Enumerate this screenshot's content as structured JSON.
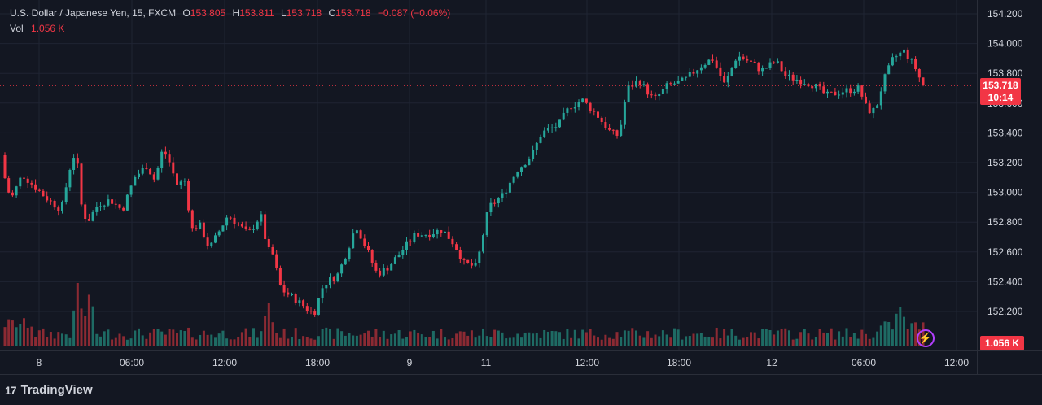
{
  "legend": {
    "symbol": "U.S. Dollar / Japanese Yen, 15, FXCM",
    "o_label": "O",
    "o_value": "153.805",
    "h_label": "H",
    "h_value": "153.811",
    "l_label": "L",
    "l_value": "153.718",
    "c_label": "C",
    "c_value": "153.718",
    "change": "−0.087 (−0.06%)",
    "vol_label": "Vol",
    "vol_value": "1.056 K"
  },
  "price_tag": {
    "price": "153.718",
    "countdown": "10:14"
  },
  "volume_tag": "1.056 K",
  "branding": {
    "name": "TradingView",
    "mark": "17"
  },
  "colors": {
    "up": "#26a69a",
    "down": "#f23645",
    "up_vol": "#1e6b64",
    "down_vol": "#8c2a33",
    "background": "#131722",
    "grid": "#1f2433",
    "text": "#d1d4dc",
    "accent_bolt": "#b33fff"
  },
  "icons": {
    "alert": "lightning-bolt-icon"
  },
  "chart_data": {
    "type": "candlestick",
    "title": "U.S. Dollar / Japanese Yen, 15, FXCM",
    "ylim": [
      152.05,
      154.25
    ],
    "y_ticks": [
      "154.200",
      "154.000",
      "153.800",
      "153.600",
      "153.400",
      "153.200",
      "153.000",
      "152.800",
      "152.600",
      "152.400",
      "152.200"
    ],
    "x_ticks": [
      "8",
      "06:00",
      "12:00",
      "18:00",
      "9",
      "11",
      "12:00",
      "18:00",
      "12",
      "06:00",
      "12:00"
    ],
    "current_price": 153.718,
    "grid": true,
    "path": [
      [
        0,
        153.35
      ],
      [
        8,
        153.15
      ],
      [
        18,
        152.95
      ],
      [
        32,
        153.12
      ],
      [
        45,
        153.05
      ],
      [
        60,
        152.97
      ],
      [
        80,
        152.88
      ],
      [
        92,
        153.2
      ],
      [
        98,
        153.28
      ],
      [
        105,
        152.9
      ],
      [
        112,
        152.8
      ],
      [
        125,
        152.92
      ],
      [
        140,
        152.95
      ],
      [
        155,
        152.88
      ],
      [
        170,
        153.1
      ],
      [
        185,
        153.18
      ],
      [
        195,
        153.08
      ],
      [
        205,
        153.3
      ],
      [
        213,
        153.2
      ],
      [
        222,
        153.05
      ],
      [
        232,
        153.08
      ],
      [
        240,
        152.75
      ],
      [
        250,
        152.78
      ],
      [
        262,
        152.62
      ],
      [
        275,
        152.75
      ],
      [
        285,
        152.85
      ],
      [
        298,
        152.78
      ],
      [
        310,
        152.72
      ],
      [
        325,
        152.85
      ],
      [
        333,
        152.62
      ],
      [
        340,
        152.58
      ],
      [
        350,
        152.35
      ],
      [
        362,
        152.3
      ],
      [
        375,
        152.25
      ],
      [
        390,
        152.18
      ],
      [
        402,
        152.38
      ],
      [
        420,
        152.45
      ],
      [
        432,
        152.62
      ],
      [
        442,
        152.78
      ],
      [
        455,
        152.62
      ],
      [
        468,
        152.45
      ],
      [
        482,
        152.5
      ],
      [
        500,
        152.62
      ],
      [
        515,
        152.72
      ],
      [
        530,
        152.72
      ],
      [
        548,
        152.75
      ],
      [
        563,
        152.65
      ],
      [
        575,
        152.52
      ],
      [
        590,
        152.5
      ],
      [
        605,
        152.9
      ],
      [
        622,
        152.98
      ],
      [
        640,
        153.15
      ],
      [
        658,
        153.25
      ],
      [
        670,
        153.4
      ],
      [
        690,
        153.45
      ],
      [
        705,
        153.58
      ],
      [
        720,
        153.62
      ],
      [
        738,
        153.52
      ],
      [
        755,
        153.4
      ],
      [
        765,
        153.38
      ],
      [
        775,
        153.7
      ],
      [
        790,
        153.75
      ],
      [
        808,
        153.62
      ],
      [
        825,
        153.72
      ],
      [
        845,
        153.75
      ],
      [
        865,
        153.85
      ],
      [
        880,
        153.9
      ],
      [
        895,
        153.72
      ],
      [
        910,
        153.92
      ],
      [
        925,
        153.88
      ],
      [
        940,
        153.82
      ],
      [
        958,
        153.88
      ],
      [
        970,
        153.78
      ],
      [
        990,
        153.75
      ],
      [
        1005,
        153.72
      ],
      [
        1020,
        153.65
      ],
      [
        1040,
        153.68
      ],
      [
        1060,
        153.7
      ],
      [
        1070,
        153.55
      ],
      [
        1080,
        153.55
      ],
      [
        1090,
        153.75
      ],
      [
        1102,
        153.9
      ],
      [
        1115,
        153.95
      ],
      [
        1128,
        153.85
      ],
      [
        1138,
        153.72
      ]
    ],
    "volume_peaks": [
      [
        96,
        0.55
      ],
      [
        110,
        0.45
      ],
      [
        330,
        0.35
      ],
      [
        1105,
        0.2
      ]
    ]
  }
}
